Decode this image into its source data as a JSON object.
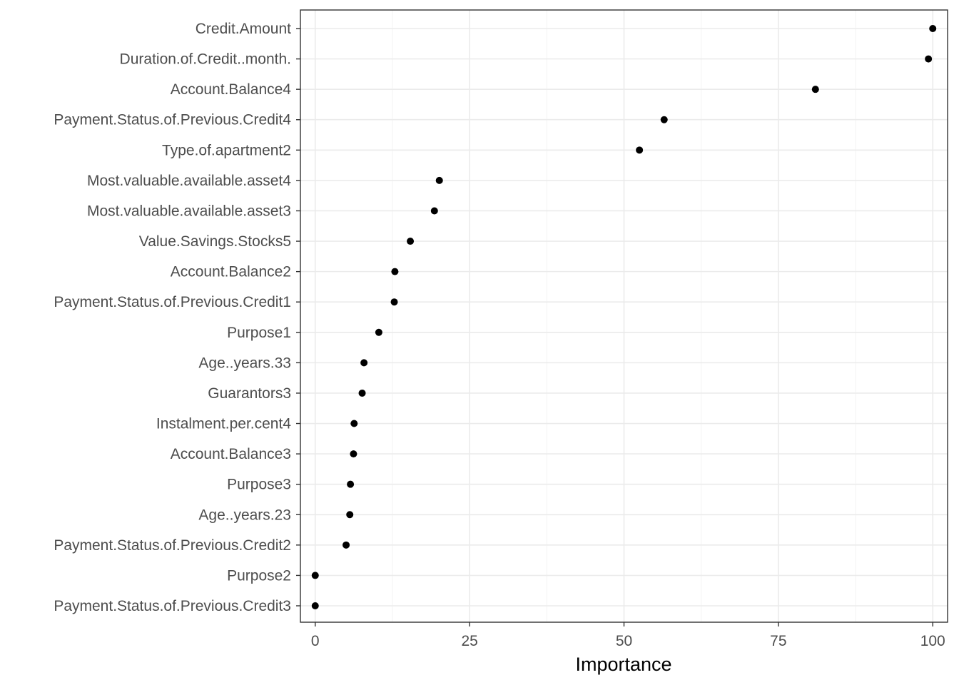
{
  "chart_data": {
    "type": "scatter",
    "xlabel": "Importance",
    "ylabel": "",
    "xlim": [
      -2.4,
      102.4
    ],
    "xticks": [
      0,
      25,
      50,
      75,
      100
    ],
    "grid": true,
    "categories": [
      "Credit.Amount",
      "Duration.of.Credit..month.",
      "Account.Balance4",
      "Payment.Status.of.Previous.Credit4",
      "Type.of.apartment2",
      "Most.valuable.available.asset4",
      "Most.valuable.available.asset3",
      "Value.Savings.Stocks5",
      "Account.Balance2",
      "Payment.Status.of.Previous.Credit1",
      "Purpose1",
      "Age..years.33",
      "Guarantors3",
      "Instalment.per.cent4",
      "Account.Balance3",
      "Purpose3",
      "Age..years.23",
      "Payment.Status.of.Previous.Credit2",
      "Purpose2",
      "Payment.Status.of.Previous.Credit3"
    ],
    "values": [
      100,
      99.3,
      81.0,
      56.5,
      52.5,
      20.1,
      19.3,
      15.4,
      12.9,
      12.8,
      10.3,
      7.9,
      7.6,
      6.3,
      6.2,
      5.7,
      5.6,
      5.0,
      0,
      0
    ]
  },
  "colors": {
    "point": "#000000",
    "grid": "#ebebeb",
    "border": "#333333",
    "tick_text": "#4d4d4d"
  }
}
